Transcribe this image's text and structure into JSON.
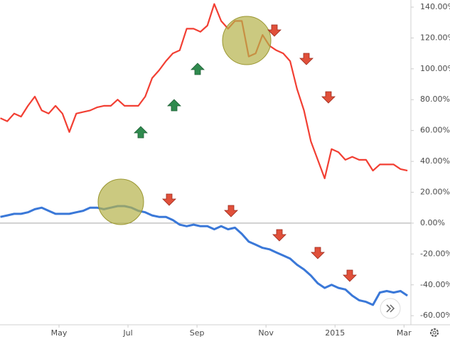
{
  "chart_data": {
    "type": "line",
    "x": [
      -1.7,
      -1.5,
      -1.3,
      -1.1,
      -0.9,
      -0.7,
      -0.5,
      -0.3,
      -0.1,
      0.1,
      0.3,
      0.5,
      0.7,
      0.9,
      1.1,
      1.3,
      1.5,
      1.7,
      1.9,
      2.1,
      2.3,
      2.5,
      2.7,
      2.9,
      3.1,
      3.3,
      3.5,
      3.7,
      3.9,
      4.1,
      4.3,
      4.5,
      4.7,
      4.9,
      5.1,
      5.3,
      5.5,
      5.7,
      5.9,
      6.1,
      6.3,
      6.5,
      6.7,
      6.9,
      7.1,
      7.3,
      7.5,
      7.7,
      7.9,
      8.1,
      8.3,
      8.5,
      8.7,
      8.9,
      9.1,
      9.3,
      9.5,
      9.7,
      9.9,
      10.1
    ],
    "series": [
      {
        "color": "#f23f33",
        "values": [
          68,
          66,
          71,
          69,
          76,
          82,
          73,
          71,
          76,
          71,
          59,
          71,
          72,
          73,
          75,
          76,
          76,
          80,
          76,
          76,
          76,
          82,
          94,
          99,
          105,
          110,
          112,
          126,
          126,
          124,
          128,
          142,
          131,
          126,
          131,
          131,
          108,
          110,
          122,
          115,
          112,
          110,
          105,
          87,
          73,
          53,
          41,
          29,
          48,
          46,
          41,
          43,
          41,
          41,
          34,
          38,
          38,
          38,
          35,
          34
        ]
      },
      {
        "color": "#3a78d8",
        "values": [
          4,
          5,
          6,
          6,
          7,
          9,
          10,
          8,
          6,
          6,
          6,
          7,
          8,
          10,
          10,
          9,
          10,
          11,
          11,
          10,
          8,
          7,
          5,
          4,
          4,
          2,
          -1,
          -2,
          -1,
          -2,
          -2,
          -4,
          -2,
          -4,
          -3,
          -7,
          -12,
          -14,
          -16,
          -17,
          -19,
          -21,
          -23,
          -27,
          -30,
          -34,
          -39,
          -42,
          -40,
          -42,
          -43,
          -47,
          -50,
          -51,
          -53,
          -45,
          -44,
          -45,
          -44,
          -47
        ]
      }
    ],
    "xlim": [
      -1.71,
      10.2
    ],
    "xticks": [
      {
        "value": 0,
        "label": "May"
      },
      {
        "value": 2,
        "label": "Jul"
      },
      {
        "value": 4,
        "label": "Sep"
      },
      {
        "value": 6,
        "label": "Nov"
      },
      {
        "value": 8,
        "label": "2015"
      },
      {
        "value": 10,
        "label": "Mar"
      }
    ],
    "ylim": [
      -65.9,
      144.6
    ],
    "yticks": [
      {
        "value": 140,
        "label": "140.00%"
      },
      {
        "value": 120,
        "label": "120.00%"
      },
      {
        "value": 100,
        "label": "100.00%"
      },
      {
        "value": 80,
        "label": "80.00%"
      },
      {
        "value": 60,
        "label": "60.00%"
      },
      {
        "value": 40,
        "label": "40.00%"
      },
      {
        "value": 20,
        "label": "20.00%"
      },
      {
        "value": 0,
        "label": "0.00%"
      },
      {
        "value": -20,
        "label": "-20.00%"
      },
      {
        "value": -40,
        "label": "-40.00%"
      },
      {
        "value": -60,
        "label": "-60.00%"
      }
    ]
  }
}
